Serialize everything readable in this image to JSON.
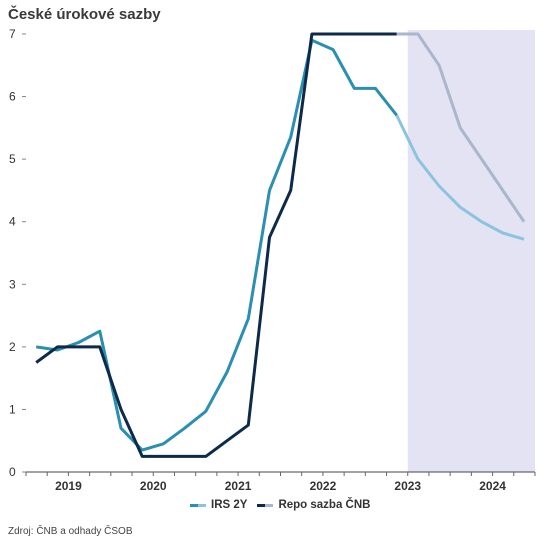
{
  "chart_data": {
    "type": "line",
    "title": "České úrokové sazby",
    "ylim": [
      0,
      7
    ],
    "yticks": [
      "0",
      "1",
      "2",
      "3",
      "4",
      "5",
      "6",
      "7"
    ],
    "xlim": [
      2018.5,
      2024.5
    ],
    "year_labels": [
      {
        "label": "2019",
        "x": 2019.0
      },
      {
        "label": "2020",
        "x": 2020.0
      },
      {
        "label": "2021",
        "x": 2021.0
      },
      {
        "label": "2022",
        "x": 2022.0
      },
      {
        "label": "2023",
        "x": 2023.0
      },
      {
        "label": "2024",
        "x": 2024.0
      }
    ],
    "forecast_start": 2023.0,
    "series": [
      {
        "name": "IRS 2Y",
        "color": "#2a8fb0",
        "forecast_color": "#8cc3de",
        "points": [
          [
            2018.62,
            2.0
          ],
          [
            2018.87,
            1.95
          ],
          [
            2019.12,
            2.07
          ],
          [
            2019.37,
            2.25
          ],
          [
            2019.62,
            0.7
          ],
          [
            2019.87,
            0.35
          ],
          [
            2020.12,
            0.45
          ],
          [
            2020.37,
            0.7
          ],
          [
            2020.62,
            0.97
          ],
          [
            2020.87,
            1.6
          ],
          [
            2021.12,
            2.45
          ],
          [
            2021.37,
            4.5
          ],
          [
            2021.62,
            5.35
          ],
          [
            2021.87,
            6.9
          ],
          [
            2022.12,
            6.75
          ],
          [
            2022.37,
            6.13
          ],
          [
            2022.62,
            6.13
          ],
          [
            2022.87,
            5.7
          ],
          [
            2023.12,
            5.0
          ],
          [
            2023.37,
            4.57
          ],
          [
            2023.62,
            4.23
          ],
          [
            2023.87,
            4.0
          ],
          [
            2024.12,
            3.82
          ],
          [
            2024.37,
            3.72
          ]
        ]
      },
      {
        "name": "Repo sazba ČNB",
        "color": "#0d2a4a",
        "forecast_color": "#a9b6cc",
        "points": [
          [
            2018.62,
            1.75
          ],
          [
            2018.87,
            2.0
          ],
          [
            2019.12,
            2.0
          ],
          [
            2019.37,
            2.0
          ],
          [
            2019.62,
            1.0
          ],
          [
            2019.87,
            0.25
          ],
          [
            2020.12,
            0.25
          ],
          [
            2020.37,
            0.25
          ],
          [
            2020.62,
            0.25
          ],
          [
            2020.87,
            0.5
          ],
          [
            2021.12,
            0.75
          ],
          [
            2021.37,
            3.75
          ],
          [
            2021.62,
            4.5
          ],
          [
            2021.87,
            7.0
          ],
          [
            2022.12,
            7.0
          ],
          [
            2022.37,
            7.0
          ],
          [
            2022.62,
            7.0
          ],
          [
            2022.87,
            7.0
          ],
          [
            2023.12,
            7.0
          ],
          [
            2023.37,
            6.5
          ],
          [
            2023.62,
            5.5
          ],
          [
            2023.87,
            5.0
          ],
          [
            2024.12,
            4.5
          ],
          [
            2024.37,
            4.0
          ]
        ]
      }
    ]
  },
  "legend": {
    "irs_label": "IRS 2Y",
    "repo_label": "Repo sazba ČNB"
  },
  "source": "Zdroj: ČNB a odhady ČSOB"
}
